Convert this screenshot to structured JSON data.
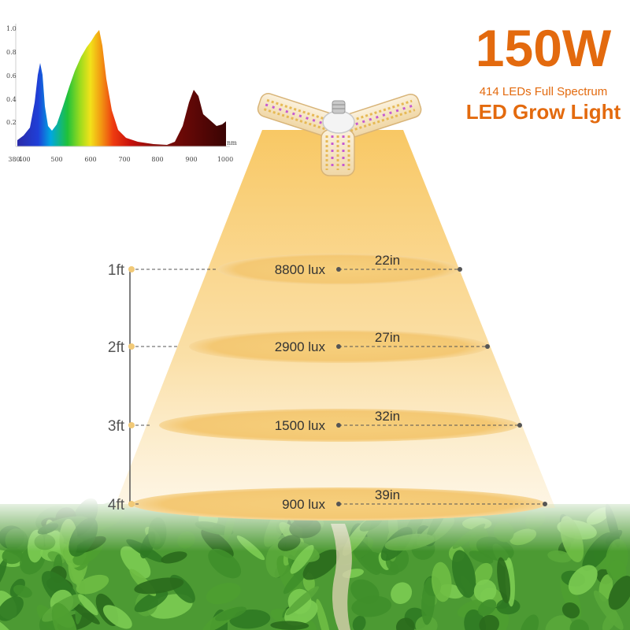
{
  "header": {
    "wattage": "150W",
    "subtitle": "414 LEDs Full Spectrum",
    "product": "LED Grow Light"
  },
  "spectrum": {
    "y_ticks": [
      "1.0",
      "0.8",
      "0.6",
      "0.4",
      "0.2"
    ],
    "x_ticks": [
      "380",
      "400",
      "500",
      "600",
      "700",
      "800",
      "900",
      "1000"
    ],
    "unit": "nm"
  },
  "levels": [
    {
      "height": "1ft",
      "lux": "8800 lux",
      "diameter": "22in"
    },
    {
      "height": "2ft",
      "lux": "2900 lux",
      "diameter": "27in"
    },
    {
      "height": "3ft",
      "lux": "1500 lux",
      "diameter": "32in"
    },
    {
      "height": "4ft",
      "lux": "900 lux",
      "diameter": "39in"
    }
  ],
  "colors": {
    "title_orange": "#e36a0e",
    "beam": "#f7c25a",
    "ellipse": "#f3c86d",
    "foliage": "#3f8a2a"
  }
}
